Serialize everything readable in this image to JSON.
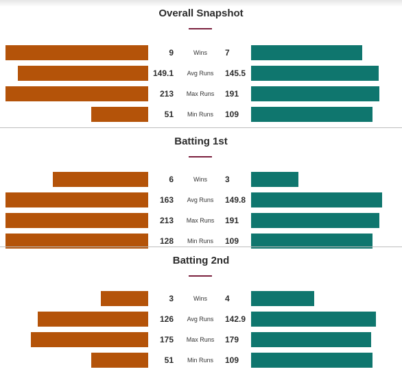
{
  "colors": {
    "team_a": "#b45309",
    "team_b": "#0f766e",
    "accent": "#7a1f3d"
  },
  "chart_data": [
    {
      "type": "bar",
      "title": "Overall Snapshot",
      "categories": [
        "Wins",
        "Avg Runs",
        "Max Runs",
        "Min Runs"
      ],
      "left_labels": [
        "9",
        "149.1",
        "213",
        "51"
      ],
      "right_labels": [
        "7",
        "145.5",
        "191",
        "109"
      ],
      "series": [
        {
          "values": [
            9,
            149.1,
            213,
            51
          ]
        },
        {
          "values": [
            7,
            145.5,
            191,
            109
          ]
        }
      ]
    },
    {
      "type": "bar",
      "title": "Batting 1st",
      "categories": [
        "Wins",
        "Avg Runs",
        "Max Runs",
        "Min Runs"
      ],
      "left_labels": [
        "6",
        "163",
        "213",
        "128"
      ],
      "right_labels": [
        "3",
        "149.8",
        "191",
        "109"
      ],
      "series": [
        {
          "values": [
            6,
            163,
            213,
            128
          ]
        },
        {
          "values": [
            3,
            149.8,
            191,
            109
          ]
        }
      ]
    },
    {
      "type": "bar",
      "title": "Batting 2nd",
      "categories": [
        "Wins",
        "Avg Runs",
        "Max Runs",
        "Min Runs"
      ],
      "left_labels": [
        "3",
        "126",
        "175",
        "51"
      ],
      "right_labels": [
        "4",
        "142.9",
        "179",
        "109"
      ],
      "series": [
        {
          "values": [
            3,
            126,
            175,
            51
          ]
        },
        {
          "values": [
            4,
            142.9,
            179,
            109
          ]
        }
      ]
    }
  ]
}
